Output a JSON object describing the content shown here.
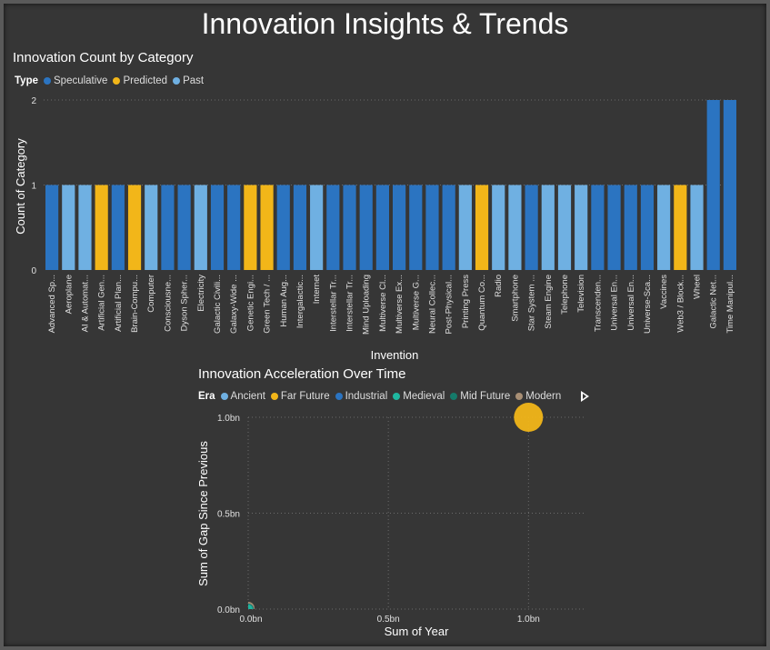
{
  "title": "Innovation Insights & Trends",
  "chart_data": [
    {
      "type": "bar",
      "title": "Innovation Count by Category",
      "xlabel": "Invention",
      "ylabel": "Count of Category",
      "ylim": [
        0,
        2
      ],
      "y_ticks": [
        "0",
        "1",
        "2"
      ],
      "legend": {
        "title": "Type",
        "placement": "top-left",
        "entries": [
          {
            "name": "Speculative",
            "color": "#2b74c1"
          },
          {
            "name": "Predicted",
            "color": "#f2b619"
          },
          {
            "name": "Past",
            "color": "#6fb0e2"
          }
        ]
      },
      "grid": true,
      "categories": [
        "Advanced Sp...",
        "Aeroplane",
        "AI & Automat...",
        "Artificial Gen...",
        "Artificial Plan...",
        "Brain-Compu...",
        "Computer",
        "Consciousne...",
        "Dyson Spher...",
        "Electricity",
        "Galactic Civili...",
        "Galaxy-Wide ...",
        "Genetic Engi...",
        "Green Tech / ...",
        "Human Aug...",
        "Intergalactic...",
        "Internet",
        "Interstellar Tr...",
        "Interstellar Tr...",
        "Mind Uploading",
        "Multiverse Cl...",
        "Multiverse Ex...",
        "Multiverse G...",
        "Neural Collec...",
        "Post-Physical...",
        "Printing Press",
        "Quantum Co...",
        "Radio",
        "Smartphone",
        "Star System ...",
        "Steam Engine",
        "Telephone",
        "Television",
        "Transcenden...",
        "Universal En...",
        "Universal En...",
        "Universe-Sca...",
        "Vaccines",
        "Web3 / Block...",
        "Wheel",
        "Galactic Net...",
        "Time Manipul..."
      ],
      "values": [
        1,
        1,
        1,
        1,
        1,
        1,
        1,
        1,
        1,
        1,
        1,
        1,
        1,
        1,
        1,
        1,
        1,
        1,
        1,
        1,
        1,
        1,
        1,
        1,
        1,
        1,
        1,
        1,
        1,
        1,
        1,
        1,
        1,
        1,
        1,
        1,
        1,
        1,
        1,
        1,
        2,
        2
      ],
      "types": [
        "Speculative",
        "Past",
        "Past",
        "Predicted",
        "Speculative",
        "Predicted",
        "Past",
        "Speculative",
        "Speculative",
        "Past",
        "Speculative",
        "Speculative",
        "Predicted",
        "Predicted",
        "Speculative",
        "Speculative",
        "Past",
        "Speculative",
        "Speculative",
        "Speculative",
        "Speculative",
        "Speculative",
        "Speculative",
        "Speculative",
        "Speculative",
        "Past",
        "Predicted",
        "Past",
        "Past",
        "Speculative",
        "Past",
        "Past",
        "Past",
        "Speculative",
        "Speculative",
        "Speculative",
        "Speculative",
        "Past",
        "Predicted",
        "Past",
        "Speculative",
        "Speculative"
      ]
    },
    {
      "type": "scatter",
      "title": "Innovation Acceleration Over Time",
      "xlabel": "Sum of Year",
      "ylabel": "Sum of Gap Since Previous",
      "xlim": [
        0,
        1200000000
      ],
      "ylim": [
        0,
        1000000000
      ],
      "x_ticks": [
        {
          "value": 0,
          "label": "0.0bn"
        },
        {
          "value": 500000000,
          "label": "0.5bn"
        },
        {
          "value": 1000000000,
          "label": "1.0bn"
        }
      ],
      "y_ticks": [
        {
          "value": 0,
          "label": "0.0bn"
        },
        {
          "value": 500000000,
          "label": "0.5bn"
        },
        {
          "value": 1000000000,
          "label": "1.0bn"
        }
      ],
      "grid": true,
      "legend": {
        "title": "Era",
        "placement": "top-left",
        "entries": [
          {
            "name": "Ancient",
            "color": "#6fb0e2"
          },
          {
            "name": "Far Future",
            "color": "#f2b619"
          },
          {
            "name": "Industrial",
            "color": "#2b74c1"
          },
          {
            "name": "Medieval",
            "color": "#1fb7a0"
          },
          {
            "name": "Mid Future",
            "color": "#157a6a"
          },
          {
            "name": "Modern",
            "color": "#a88f75"
          }
        ]
      },
      "points": [
        {
          "era": "Far Future",
          "x": 1000000000,
          "y": 1000000000,
          "size": 16
        },
        {
          "era": "Modern",
          "x": 2000,
          "y": 5000000,
          "size": 7
        },
        {
          "era": "Industrial",
          "x": 1900,
          "y": 200,
          "size": 6
        },
        {
          "era": "Mid Future",
          "x": 2100,
          "y": 100,
          "size": 6
        },
        {
          "era": "Medieval",
          "x": 1400,
          "y": 1000,
          "size": 5
        }
      ]
    }
  ]
}
